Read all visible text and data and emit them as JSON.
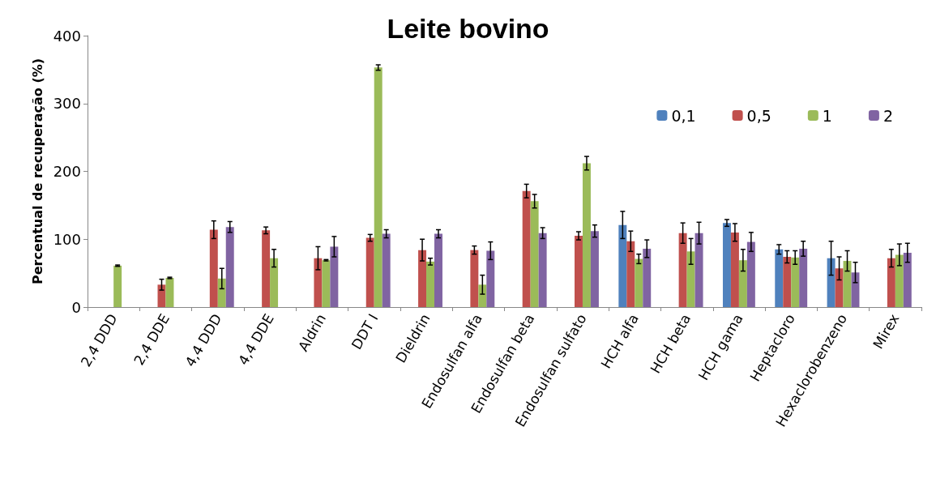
{
  "chart_data": {
    "type": "bar",
    "title": "Leite bovino",
    "ylabel": "Percentual de recuperação (%)",
    "categories": [
      "2,4 DDD",
      "2,4 DDE",
      "4,4 DDD",
      "4,4 DDE",
      "Aldrin",
      "DDT I",
      "Dieldrin",
      "Endosulfan alfa",
      "Endosulfan beta",
      "Endosulfan sulfato",
      "HCH alfa",
      "HCH beta",
      "HCH gama",
      "Heptacloro",
      "Hexaclorobenzeno",
      "Mirex"
    ],
    "series": [
      {
        "name": "0,1",
        "color": "#4f81bd",
        "values": [
          null,
          null,
          null,
          null,
          null,
          null,
          null,
          null,
          null,
          null,
          121,
          null,
          124,
          85,
          72,
          null
        ],
        "errors": [
          null,
          null,
          null,
          null,
          null,
          null,
          null,
          null,
          null,
          null,
          20,
          null,
          5,
          7,
          25,
          null
        ]
      },
      {
        "name": "0,5",
        "color": "#c0504d",
        "values": [
          null,
          33,
          114,
          113,
          72,
          102,
          84,
          84,
          171,
          105,
          97,
          109,
          110,
          74,
          57,
          72
        ],
        "errors": [
          null,
          8,
          13,
          5,
          17,
          5,
          16,
          6,
          10,
          6,
          15,
          15,
          13,
          9,
          17,
          13
        ]
      },
      {
        "name": "1",
        "color": "#9bbb59",
        "values": [
          61,
          43,
          42,
          72,
          69,
          353,
          67,
          33,
          156,
          212,
          71,
          82,
          69,
          73,
          68,
          77
        ],
        "errors": [
          1,
          1,
          15,
          13,
          1,
          4,
          5,
          14,
          10,
          10,
          7,
          19,
          16,
          10,
          15,
          16
        ]
      },
      {
        "name": "2",
        "color": "#8064a2",
        "values": [
          null,
          null,
          118,
          null,
          89,
          108,
          108,
          83,
          109,
          112,
          86,
          109,
          96,
          86,
          51,
          80
        ],
        "errors": [
          null,
          null,
          8,
          null,
          15,
          6,
          6,
          13,
          8,
          9,
          13,
          16,
          14,
          11,
          15,
          14
        ]
      }
    ],
    "ylim": [
      0,
      400
    ],
    "yticks": [
      0,
      100,
      200,
      300,
      400
    ],
    "grid": false,
    "legend": "top right"
  }
}
